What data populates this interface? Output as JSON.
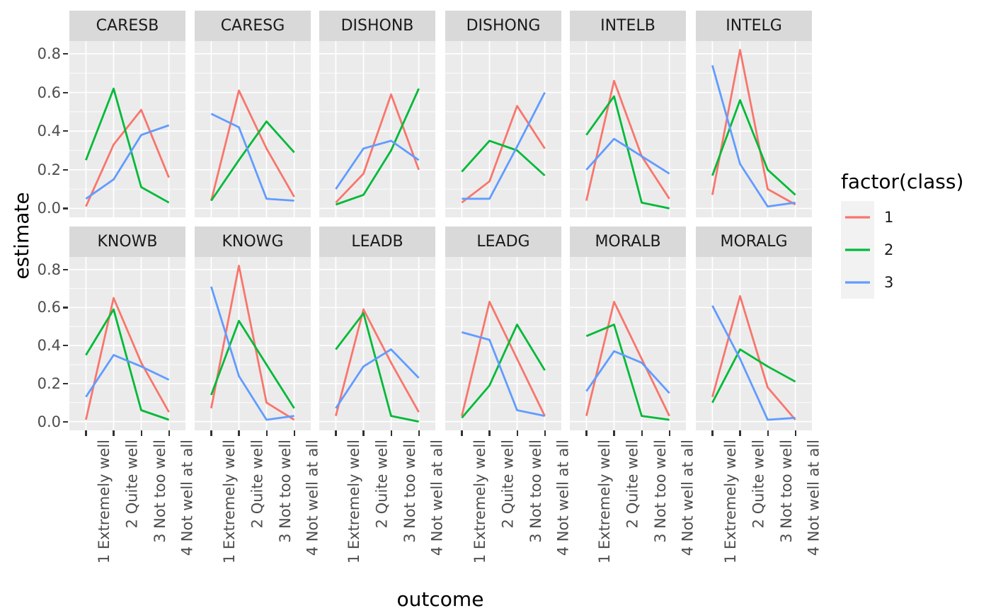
{
  "figure": {
    "y_axis_title": "estimate",
    "x_axis_title": "outcome"
  },
  "style": {
    "panel_bg": "#EBEBEB",
    "strip_bg": "#D9D9D9",
    "gridline": "#FFFFFF",
    "axis_text": "#4D4D4D",
    "tick_mark": "#333333",
    "strip_text": "#1A1A1A",
    "legend_key_bg": "#F2F2F2"
  },
  "chart_data": {
    "type": "line",
    "xlabel": "outcome",
    "ylabel": "estimate",
    "categories": [
      "1 Extremely well",
      "2 Quite well",
      "3 Not too well",
      "4 Not well at all"
    ],
    "y_ticks": [
      0.0,
      0.2,
      0.4,
      0.6,
      0.8
    ],
    "y_tick_labels": [
      "0.0",
      "0.2",
      "0.4",
      "0.6",
      "0.8"
    ],
    "y_minor_ticks": [
      0.1,
      0.3,
      0.5,
      0.7
    ],
    "ylim": [
      -0.046,
      0.866
    ],
    "grid": true,
    "facet_layout": {
      "rows": 2,
      "cols": 6
    },
    "legend": {
      "title": "factor(class)",
      "position": "right",
      "classes": [
        {
          "label": "1",
          "color": "#F8766D"
        },
        {
          "label": "2",
          "color": "#00BA38"
        },
        {
          "label": "3",
          "color": "#619CFF"
        }
      ]
    },
    "facets": [
      {
        "label": "CARESB",
        "series": [
          [
            0.01,
            0.33,
            0.51,
            0.16
          ],
          [
            0.25,
            0.62,
            0.11,
            0.03
          ],
          [
            0.05,
            0.15,
            0.38,
            0.43
          ]
        ]
      },
      {
        "label": "CARESG",
        "series": [
          [
            0.04,
            0.61,
            0.31,
            0.06
          ],
          [
            0.04,
            0.25,
            0.45,
            0.29
          ],
          [
            0.49,
            0.42,
            0.05,
            0.04
          ]
        ]
      },
      {
        "label": "DISHONB",
        "series": [
          [
            0.03,
            0.18,
            0.59,
            0.2
          ],
          [
            0.02,
            0.07,
            0.3,
            0.62
          ],
          [
            0.1,
            0.31,
            0.35,
            0.25
          ]
        ]
      },
      {
        "label": "DISHONG",
        "series": [
          [
            0.03,
            0.14,
            0.53,
            0.31
          ],
          [
            0.19,
            0.35,
            0.3,
            0.17
          ],
          [
            0.05,
            0.05,
            0.32,
            0.6
          ]
        ]
      },
      {
        "label": "INTELB",
        "series": [
          [
            0.04,
            0.66,
            0.27,
            0.05
          ],
          [
            0.38,
            0.58,
            0.03,
            0.0
          ],
          [
            0.2,
            0.36,
            0.27,
            0.18
          ]
        ]
      },
      {
        "label": "INTELG",
        "series": [
          [
            0.07,
            0.82,
            0.1,
            0.02
          ],
          [
            0.17,
            0.56,
            0.2,
            0.07
          ],
          [
            0.74,
            0.23,
            0.01,
            0.03
          ]
        ]
      },
      {
        "label": "KNOWB",
        "series": [
          [
            0.01,
            0.65,
            0.31,
            0.05
          ],
          [
            0.35,
            0.59,
            0.06,
            0.01
          ],
          [
            0.13,
            0.35,
            0.29,
            0.22
          ]
        ]
      },
      {
        "label": "KNOWG",
        "series": [
          [
            0.07,
            0.82,
            0.1,
            0.01
          ],
          [
            0.14,
            0.53,
            0.3,
            0.07
          ],
          [
            0.71,
            0.24,
            0.01,
            0.03
          ]
        ]
      },
      {
        "label": "LEADB",
        "series": [
          [
            0.03,
            0.59,
            0.31,
            0.05
          ],
          [
            0.38,
            0.57,
            0.03,
            0.0
          ],
          [
            0.07,
            0.29,
            0.38,
            0.23
          ]
        ]
      },
      {
        "label": "LEADG",
        "series": [
          [
            0.03,
            0.63,
            0.33,
            0.03
          ],
          [
            0.02,
            0.19,
            0.51,
            0.27
          ],
          [
            0.47,
            0.43,
            0.06,
            0.03
          ]
        ]
      },
      {
        "label": "MORALB",
        "series": [
          [
            0.03,
            0.63,
            0.33,
            0.03
          ],
          [
            0.45,
            0.51,
            0.03,
            0.01
          ],
          [
            0.16,
            0.37,
            0.31,
            0.15
          ]
        ]
      },
      {
        "label": "MORALG",
        "series": [
          [
            0.13,
            0.66,
            0.18,
            0.01
          ],
          [
            0.1,
            0.38,
            0.29,
            0.21
          ],
          [
            0.61,
            0.33,
            0.01,
            0.02
          ]
        ]
      }
    ]
  }
}
